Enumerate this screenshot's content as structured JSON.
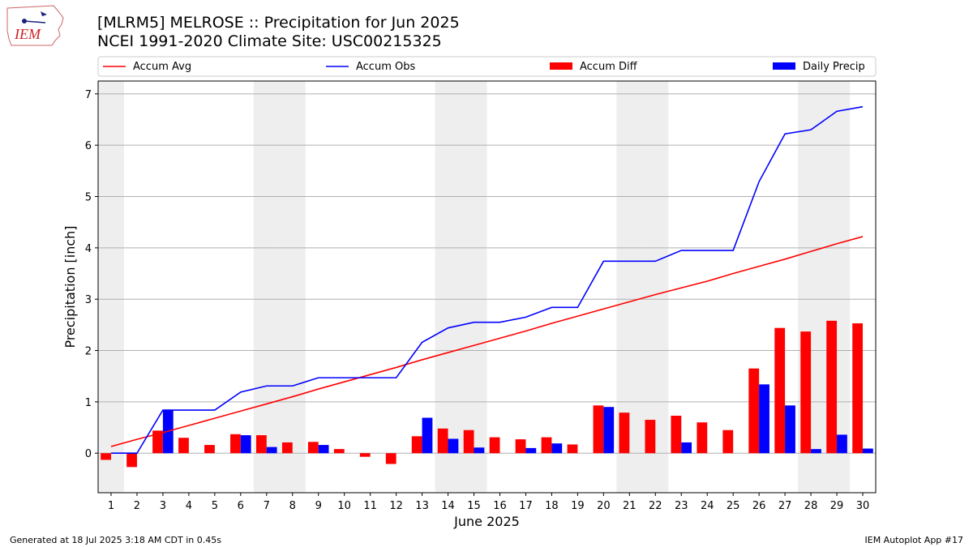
{
  "logo": {
    "text": "IEM"
  },
  "header": {
    "title": "[MLRM5] MELROSE :: Precipitation for Jun 2025",
    "subtitle": "NCEI 1991-2020 Climate Site: USC00215325"
  },
  "footer": {
    "left": "Generated at 18 Jul 2025 3:18 AM CDT in 0.45s",
    "right": "IEM Autoplot App #17"
  },
  "colors": {
    "avg": "#ff0000",
    "obs": "#0000ff",
    "diff": "#ff0000",
    "daily": "#0000ff",
    "weekend_shade": "#eeeeee",
    "grid": "#b0b0b0"
  },
  "chart_data": {
    "type": "bar",
    "xlabel": "June 2025",
    "ylabel": "Precipitation [inch]",
    "ylim": [
      -0.77,
      7.25
    ],
    "xlim": [
      0.5,
      30.5
    ],
    "yticks": [
      0,
      1,
      2,
      3,
      4,
      5,
      6,
      7
    ],
    "grid": "horizontal",
    "legend_position": "top (above plot)",
    "shaded_days": [
      1,
      7,
      8,
      14,
      15,
      21,
      22,
      28,
      29
    ],
    "x": [
      1,
      2,
      3,
      4,
      5,
      6,
      7,
      8,
      9,
      10,
      11,
      12,
      13,
      14,
      15,
      16,
      17,
      18,
      19,
      20,
      21,
      22,
      23,
      24,
      25,
      26,
      27,
      28,
      29,
      30
    ],
    "legend": [
      "Accum Avg",
      "Accum Obs",
      "Accum Diff",
      "Daily Precip"
    ],
    "series": [
      {
        "name": "Accum Avg",
        "type": "line",
        "values": [
          0.13,
          0.27,
          0.4,
          0.54,
          0.68,
          0.82,
          0.96,
          1.1,
          1.25,
          1.39,
          1.53,
          1.67,
          1.82,
          1.96,
          2.1,
          2.24,
          2.38,
          2.53,
          2.67,
          2.81,
          2.95,
          3.09,
          3.22,
          3.35,
          3.5,
          3.64,
          3.78,
          3.93,
          4.08,
          4.22
        ]
      },
      {
        "name": "Accum Obs",
        "type": "line",
        "values": [
          0.0,
          0.0,
          0.84,
          0.84,
          0.84,
          1.19,
          1.31,
          1.31,
          1.47,
          1.47,
          1.47,
          1.47,
          2.16,
          2.44,
          2.55,
          2.55,
          2.65,
          2.84,
          2.84,
          3.74,
          3.74,
          3.74,
          3.95,
          3.95,
          3.95,
          5.29,
          6.22,
          6.3,
          6.66,
          6.75
        ]
      },
      {
        "name": "Accum Diff",
        "type": "bar",
        "values": [
          -0.13,
          -0.27,
          0.44,
          0.3,
          0.16,
          0.37,
          0.35,
          0.21,
          0.22,
          0.08,
          -0.07,
          -0.21,
          0.33,
          0.48,
          0.45,
          0.31,
          0.27,
          0.31,
          0.17,
          0.93,
          0.79,
          0.65,
          0.73,
          0.6,
          0.45,
          1.65,
          2.44,
          2.37,
          2.58,
          2.53
        ]
      },
      {
        "name": "Daily Precip",
        "type": "bar",
        "values": [
          0.0,
          0.0,
          0.84,
          0.0,
          0.0,
          0.35,
          0.12,
          0.0,
          0.16,
          0.0,
          0.0,
          0.0,
          0.69,
          0.28,
          0.11,
          0.0,
          0.1,
          0.19,
          0.0,
          0.9,
          0.0,
          0.0,
          0.21,
          0.0,
          0.0,
          1.34,
          0.93,
          0.08,
          0.36,
          0.09
        ]
      }
    ]
  }
}
